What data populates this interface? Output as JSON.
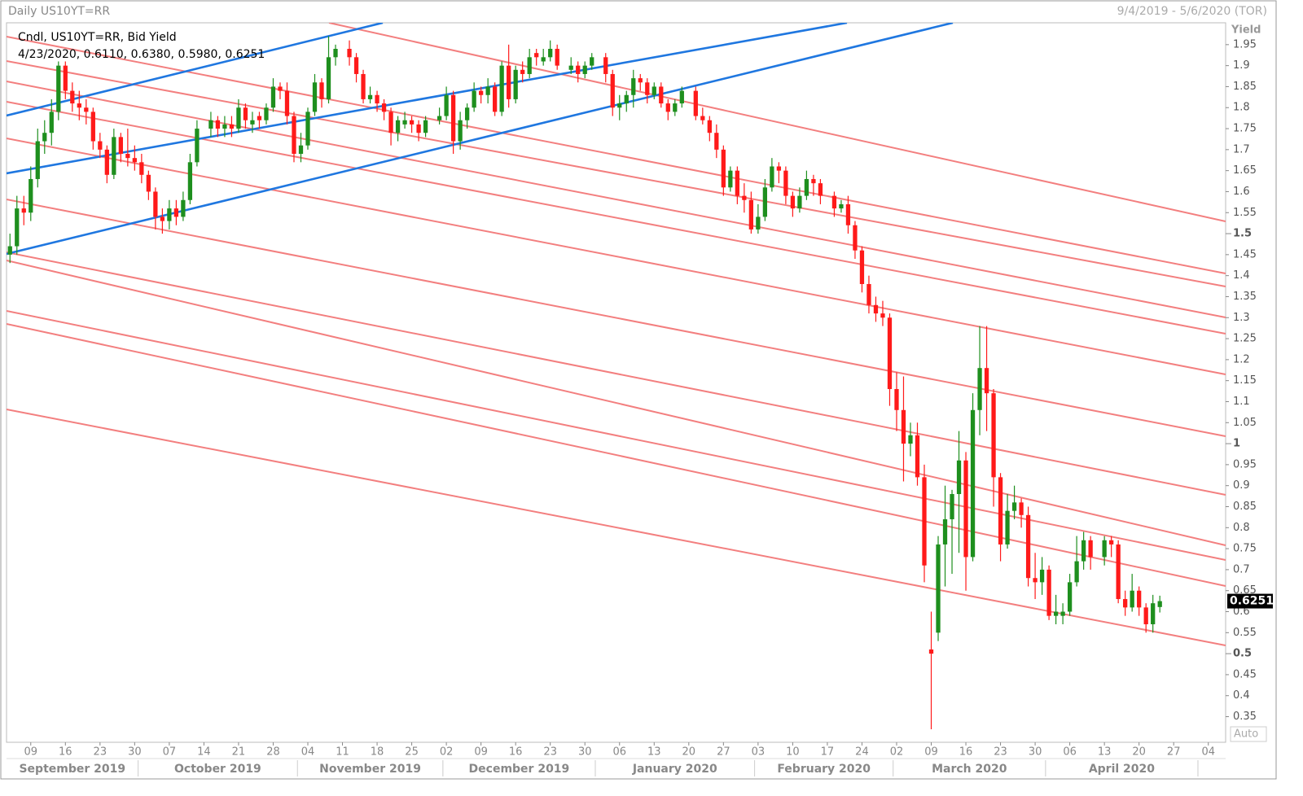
{
  "chart_data": {
    "type": "candlestick",
    "title": "Daily US10YT=RR",
    "date_range": "9/4/2019 - 5/6/2020 (TOR)",
    "legend": "Cndl, US10YT=RR, Bid Yield",
    "legend_values": "4/23/2020, 0.6110, 0.6380, 0.5980, 0.6251",
    "y_label": "Yield",
    "scale_mode": "Auto",
    "last_value": 0.6251,
    "up_color": "#1e8f1e",
    "down_color": "#ff1a1a",
    "grid": false,
    "xlim": [
      "2019-09-04",
      "2020-05-06"
    ],
    "ylim": [
      0.289,
      2.002
    ],
    "yticks": [
      0.35,
      0.4,
      0.45,
      0.5,
      0.55,
      0.6,
      0.65,
      0.7,
      0.75,
      0.8,
      0.85,
      0.9,
      0.95,
      1,
      1.05,
      1.1,
      1.15,
      1.2,
      1.25,
      1.3,
      1.35,
      1.4,
      1.45,
      1.5,
      1.55,
      1.6,
      1.65,
      1.7,
      1.75,
      1.8,
      1.85,
      1.9,
      1.95
    ],
    "xticks": [
      {
        "value": "2019-09-09",
        "label": "09"
      },
      {
        "value": "2019-09-16",
        "label": "16"
      },
      {
        "value": "2019-09-23",
        "label": "23"
      },
      {
        "value": "2019-09-30",
        "label": "30"
      },
      {
        "value": "2019-10-07",
        "label": "07"
      },
      {
        "value": "2019-10-14",
        "label": "14"
      },
      {
        "value": "2019-10-21",
        "label": "21"
      },
      {
        "value": "2019-10-28",
        "label": "28"
      },
      {
        "value": "2019-11-04",
        "label": "04"
      },
      {
        "value": "2019-11-11",
        "label": "11"
      },
      {
        "value": "2019-11-18",
        "label": "18"
      },
      {
        "value": "2019-11-25",
        "label": "25"
      },
      {
        "value": "2019-12-02",
        "label": "02"
      },
      {
        "value": "2019-12-09",
        "label": "09"
      },
      {
        "value": "2019-12-16",
        "label": "16"
      },
      {
        "value": "2019-12-23",
        "label": "23"
      },
      {
        "value": "2019-12-30",
        "label": "30"
      },
      {
        "value": "2020-01-06",
        "label": "06"
      },
      {
        "value": "2020-01-13",
        "label": "13"
      },
      {
        "value": "2020-01-20",
        "label": "20"
      },
      {
        "value": "2020-01-27",
        "label": "27"
      },
      {
        "value": "2020-02-03",
        "label": "03"
      },
      {
        "value": "2020-02-10",
        "label": "10"
      },
      {
        "value": "2020-02-17",
        "label": "17"
      },
      {
        "value": "2020-02-24",
        "label": "24"
      },
      {
        "value": "2020-03-02",
        "label": "02"
      },
      {
        "value": "2020-03-09",
        "label": "09"
      },
      {
        "value": "2020-03-16",
        "label": "16"
      },
      {
        "value": "2020-03-23",
        "label": "23"
      },
      {
        "value": "2020-03-30",
        "label": "30"
      },
      {
        "value": "2020-04-06",
        "label": "06"
      },
      {
        "value": "2020-04-13",
        "label": "13"
      },
      {
        "value": "2020-04-20",
        "label": "20"
      },
      {
        "value": "2020-04-27",
        "label": "27"
      },
      {
        "value": "2020-05-04",
        "label": "04"
      }
    ],
    "months": [
      {
        "value": "2019-09",
        "label": "September 2019"
      },
      {
        "value": "2019-10",
        "label": "October 2019"
      },
      {
        "value": "2019-11",
        "label": "November 2019"
      },
      {
        "value": "2019-12",
        "label": "December 2019"
      },
      {
        "value": "2020-01",
        "label": "January 2020"
      },
      {
        "value": "2020-02",
        "label": "February 2020"
      },
      {
        "value": "2020-03",
        "label": "March 2020"
      },
      {
        "value": "2020-04",
        "label": "April 2020"
      }
    ],
    "x": [
      "2019-09-04",
      "2019-09-05",
      "2019-09-06",
      "2019-09-09",
      "2019-09-10",
      "2019-09-11",
      "2019-09-12",
      "2019-09-13",
      "2019-09-16",
      "2019-09-17",
      "2019-09-18",
      "2019-09-19",
      "2019-09-20",
      "2019-09-23",
      "2019-09-24",
      "2019-09-25",
      "2019-09-26",
      "2019-09-27",
      "2019-09-30",
      "2019-10-01",
      "2019-10-02",
      "2019-10-03",
      "2019-10-04",
      "2019-10-07",
      "2019-10-08",
      "2019-10-09",
      "2019-10-10",
      "2019-10-11",
      "2019-10-15",
      "2019-10-16",
      "2019-10-17",
      "2019-10-18",
      "2019-10-21",
      "2019-10-22",
      "2019-10-23",
      "2019-10-24",
      "2019-10-25",
      "2019-10-28",
      "2019-10-29",
      "2019-10-30",
      "2019-10-31",
      "2019-11-01",
      "2019-11-04",
      "2019-11-05",
      "2019-11-06",
      "2019-11-07",
      "2019-11-08",
      "2019-11-12",
      "2019-11-13",
      "2019-11-14",
      "2019-11-15",
      "2019-11-18",
      "2019-11-19",
      "2019-11-20",
      "2019-11-21",
      "2019-11-22",
      "2019-11-25",
      "2019-11-26",
      "2019-11-27",
      "2019-11-29",
      "2019-12-02",
      "2019-12-03",
      "2019-12-04",
      "2019-12-05",
      "2019-12-06",
      "2019-12-09",
      "2019-12-10",
      "2019-12-11",
      "2019-12-12",
      "2019-12-13",
      "2019-12-16",
      "2019-12-17",
      "2019-12-18",
      "2019-12-19",
      "2019-12-20",
      "2019-12-23",
      "2019-12-24",
      "2019-12-26",
      "2019-12-27",
      "2019-12-30",
      "2019-12-31",
      "2020-01-02",
      "2020-01-03",
      "2020-01-06",
      "2020-01-07",
      "2020-01-08",
      "2020-01-09",
      "2020-01-10",
      "2020-01-13",
      "2020-01-14",
      "2020-01-15",
      "2020-01-16",
      "2020-01-17",
      "2020-01-21",
      "2020-01-22",
      "2020-01-23",
      "2020-01-24",
      "2020-01-27",
      "2020-01-28",
      "2020-01-29",
      "2020-01-30",
      "2020-01-31",
      "2020-02-03",
      "2020-02-04",
      "2020-02-05",
      "2020-02-06",
      "2020-02-07",
      "2020-02-10",
      "2020-02-11",
      "2020-02-12",
      "2020-02-13",
      "2020-02-14",
      "2020-02-18",
      "2020-02-19",
      "2020-02-20",
      "2020-02-21",
      "2020-02-24",
      "2020-02-25",
      "2020-02-26",
      "2020-02-27",
      "2020-02-28",
      "2020-03-02",
      "2020-03-03",
      "2020-03-04",
      "2020-03-05",
      "2020-03-06",
      "2020-03-09",
      "2020-03-10",
      "2020-03-11",
      "2020-03-12",
      "2020-03-13",
      "2020-03-16",
      "2020-03-17",
      "2020-03-18",
      "2020-03-19",
      "2020-03-20",
      "2020-03-23",
      "2020-03-24",
      "2020-03-25",
      "2020-03-26",
      "2020-03-27",
      "2020-03-30",
      "2020-03-31",
      "2020-04-01",
      "2020-04-02",
      "2020-04-03",
      "2020-04-06",
      "2020-04-07",
      "2020-04-08",
      "2020-04-09",
      "2020-04-13",
      "2020-04-14",
      "2020-04-15",
      "2020-04-16",
      "2020-04-17",
      "2020-04-20",
      "2020-04-21",
      "2020-04-22",
      "2020-04-23"
    ],
    "open": [
      1.45,
      1.47,
      1.56,
      1.55,
      1.63,
      1.72,
      1.74,
      1.79,
      1.9,
      1.84,
      1.81,
      1.8,
      1.79,
      1.72,
      1.7,
      1.64,
      1.73,
      1.69,
      1.68,
      1.67,
      1.64,
      1.6,
      1.54,
      1.53,
      1.56,
      1.54,
      1.58,
      1.67,
      1.75,
      1.77,
      1.75,
      1.76,
      1.75,
      1.8,
      1.76,
      1.78,
      1.77,
      1.8,
      1.85,
      1.84,
      1.78,
      1.69,
      1.71,
      1.79,
      1.86,
      1.82,
      1.92,
      1.94,
      1.92,
      1.88,
      1.82,
      1.83,
      1.81,
      1.79,
      1.74,
      1.76,
      1.77,
      1.76,
      1.74,
      1.77,
      1.78,
      1.83,
      1.72,
      1.77,
      1.8,
      1.84,
      1.83,
      1.85,
      1.79,
      1.9,
      1.82,
      1.89,
      1.88,
      1.93,
      1.91,
      1.92,
      1.94,
      1.89,
      1.9,
      1.88,
      1.9,
      1.92,
      1.88,
      1.8,
      1.81,
      1.83,
      1.87,
      1.86,
      1.83,
      1.85,
      1.81,
      1.79,
      1.81,
      1.84,
      1.78,
      1.77,
      1.74,
      1.7,
      1.61,
      1.65,
      1.59,
      1.58,
      1.51,
      1.54,
      1.61,
      1.66,
      1.65,
      1.59,
      1.56,
      1.59,
      1.63,
      1.62,
      1.59,
      1.56,
      1.57,
      1.52,
      1.46,
      1.38,
      1.33,
      1.31,
      1.3,
      1.13,
      1.08,
      1,
      1.02,
      0.92,
      0.51,
      0.55,
      0.76,
      0.82,
      0.88,
      0.96,
      0.73,
      1.08,
      1.18,
      1.12,
      0.92,
      0.76,
      0.84,
      0.86,
      0.83,
      0.68,
      0.67,
      0.7,
      0.59,
      0.59,
      0.6,
      0.67,
      0.72,
      0.77,
      0.73,
      0.77,
      0.76,
      0.63,
      0.61,
      0.65,
      0.61,
      0.57,
      0.611
    ],
    "high": [
      1.5,
      1.59,
      1.59,
      1.66,
      1.75,
      1.77,
      1.82,
      1.91,
      1.91,
      1.86,
      1.84,
      1.82,
      1.8,
      1.74,
      1.71,
      1.75,
      1.74,
      1.75,
      1.71,
      1.69,
      1.65,
      1.61,
      1.56,
      1.58,
      1.58,
      1.6,
      1.69,
      1.77,
      1.79,
      1.78,
      1.78,
      1.78,
      1.82,
      1.81,
      1.79,
      1.79,
      1.81,
      1.87,
      1.86,
      1.86,
      1.79,
      1.74,
      1.8,
      1.88,
      1.87,
      1.97,
      1.95,
      1.96,
      1.93,
      1.89,
      1.85,
      1.84,
      1.82,
      1.8,
      1.78,
      1.79,
      1.78,
      1.77,
      1.78,
      1.8,
      1.85,
      1.84,
      1.79,
      1.81,
      1.86,
      1.85,
      1.87,
      1.86,
      1.91,
      1.95,
      1.9,
      1.91,
      1.94,
      1.94,
      1.94,
      1.96,
      1.95,
      1.92,
      1.91,
      1.91,
      1.93,
      1.93,
      1.89,
      1.83,
      1.84,
      1.89,
      1.88,
      1.87,
      1.86,
      1.86,
      1.82,
      1.82,
      1.85,
      1.85,
      1.8,
      1.78,
      1.76,
      1.71,
      1.66,
      1.66,
      1.62,
      1.6,
      1.57,
      1.63,
      1.68,
      1.67,
      1.66,
      1.6,
      1.61,
      1.65,
      1.64,
      1.63,
      1.6,
      1.58,
      1.59,
      1.53,
      1.47,
      1.4,
      1.35,
      1.34,
      1.31,
      1.17,
      1.16,
      1.05,
      1.05,
      0.95,
      0.6,
      0.78,
      0.9,
      0.89,
      1.03,
      0.98,
      1.12,
      1.28,
      1.28,
      1.13,
      0.93,
      0.88,
      0.9,
      0.87,
      0.85,
      0.74,
      0.73,
      0.71,
      0.64,
      0.62,
      0.69,
      0.78,
      0.79,
      0.78,
      0.78,
      0.78,
      0.77,
      0.65,
      0.69,
      0.66,
      0.62,
      0.64,
      0.638
    ],
    "low": [
      1.43,
      1.45,
      1.52,
      1.53,
      1.61,
      1.69,
      1.71,
      1.77,
      1.82,
      1.79,
      1.77,
      1.76,
      1.7,
      1.68,
      1.62,
      1.63,
      1.67,
      1.66,
      1.65,
      1.62,
      1.58,
      1.51,
      1.5,
      1.51,
      1.52,
      1.53,
      1.57,
      1.66,
      1.73,
      1.73,
      1.73,
      1.73,
      1.74,
      1.75,
      1.74,
      1.75,
      1.76,
      1.79,
      1.82,
      1.76,
      1.67,
      1.67,
      1.7,
      1.78,
      1.8,
      1.81,
      1.9,
      1.9,
      1.86,
      1.81,
      1.81,
      1.79,
      1.77,
      1.71,
      1.72,
      1.75,
      1.74,
      1.72,
      1.73,
      1.76,
      1.77,
      1.69,
      1.7,
      1.75,
      1.79,
      1.81,
      1.81,
      1.78,
      1.78,
      1.8,
      1.81,
      1.86,
      1.87,
      1.9,
      1.9,
      1.91,
      1.89,
      1.88,
      1.86,
      1.87,
      1.89,
      1.86,
      1.78,
      1.77,
      1.79,
      1.8,
      1.84,
      1.81,
      1.82,
      1.8,
      1.77,
      1.78,
      1.8,
      1.77,
      1.76,
      1.72,
      1.68,
      1.59,
      1.6,
      1.57,
      1.55,
      1.5,
      1.5,
      1.53,
      1.6,
      1.62,
      1.57,
      1.54,
      1.55,
      1.58,
      1.59,
      1.57,
      1.54,
      1.55,
      1.5,
      1.44,
      1.36,
      1.31,
      1.29,
      1.28,
      1.09,
      1.03,
      0.91,
      0.97,
      0.9,
      0.67,
      0.32,
      0.53,
      0.66,
      0.69,
      0.74,
      0.65,
      0.72,
      1.02,
      1.03,
      0.85,
      0.72,
      0.75,
      0.82,
      0.8,
      0.66,
      0.63,
      0.64,
      0.58,
      0.57,
      0.57,
      0.59,
      0.66,
      0.7,
      0.7,
      0.71,
      0.73,
      0.62,
      0.59,
      0.6,
      0.59,
      0.55,
      0.55,
      0.598
    ],
    "close": [
      1.47,
      1.56,
      1.55,
      1.63,
      1.72,
      1.74,
      1.79,
      1.9,
      1.84,
      1.81,
      1.8,
      1.79,
      1.72,
      1.7,
      1.64,
      1.73,
      1.69,
      1.68,
      1.67,
      1.64,
      1.6,
      1.54,
      1.53,
      1.56,
      1.54,
      1.58,
      1.67,
      1.75,
      1.77,
      1.75,
      1.76,
      1.75,
      1.8,
      1.77,
      1.77,
      1.77,
      1.8,
      1.85,
      1.84,
      1.78,
      1.69,
      1.71,
      1.79,
      1.86,
      1.82,
      1.92,
      1.94,
      1.92,
      1.88,
      1.82,
      1.83,
      1.81,
      1.79,
      1.74,
      1.77,
      1.77,
      1.76,
      1.74,
      1.77,
      1.78,
      1.83,
      1.72,
      1.77,
      1.8,
      1.84,
      1.83,
      1.85,
      1.79,
      1.9,
      1.82,
      1.89,
      1.88,
      1.92,
      1.92,
      1.92,
      1.94,
      1.9,
      1.9,
      1.88,
      1.9,
      1.92,
      1.88,
      1.8,
      1.81,
      1.83,
      1.87,
      1.86,
      1.83,
      1.85,
      1.81,
      1.79,
      1.81,
      1.84,
      1.78,
      1.77,
      1.74,
      1.7,
      1.61,
      1.65,
      1.59,
      1.58,
      1.51,
      1.54,
      1.61,
      1.66,
      1.65,
      1.59,
      1.56,
      1.59,
      1.63,
      1.62,
      1.59,
      1.56,
      1.57,
      1.52,
      1.46,
      1.38,
      1.33,
      1.31,
      1.3,
      1.13,
      1.08,
      1,
      1.02,
      0.92,
      0.71,
      0.5,
      0.76,
      0.82,
      0.88,
      0.96,
      0.73,
      1.08,
      1.18,
      1.12,
      0.92,
      0.76,
      0.84,
      0.86,
      0.83,
      0.68,
      0.67,
      0.7,
      0.59,
      0.6,
      0.6,
      0.67,
      0.72,
      0.77,
      0.73,
      0.77,
      0.76,
      0.63,
      0.61,
      0.65,
      0.61,
      0.57,
      0.62,
      0.6251
    ]
  }
}
